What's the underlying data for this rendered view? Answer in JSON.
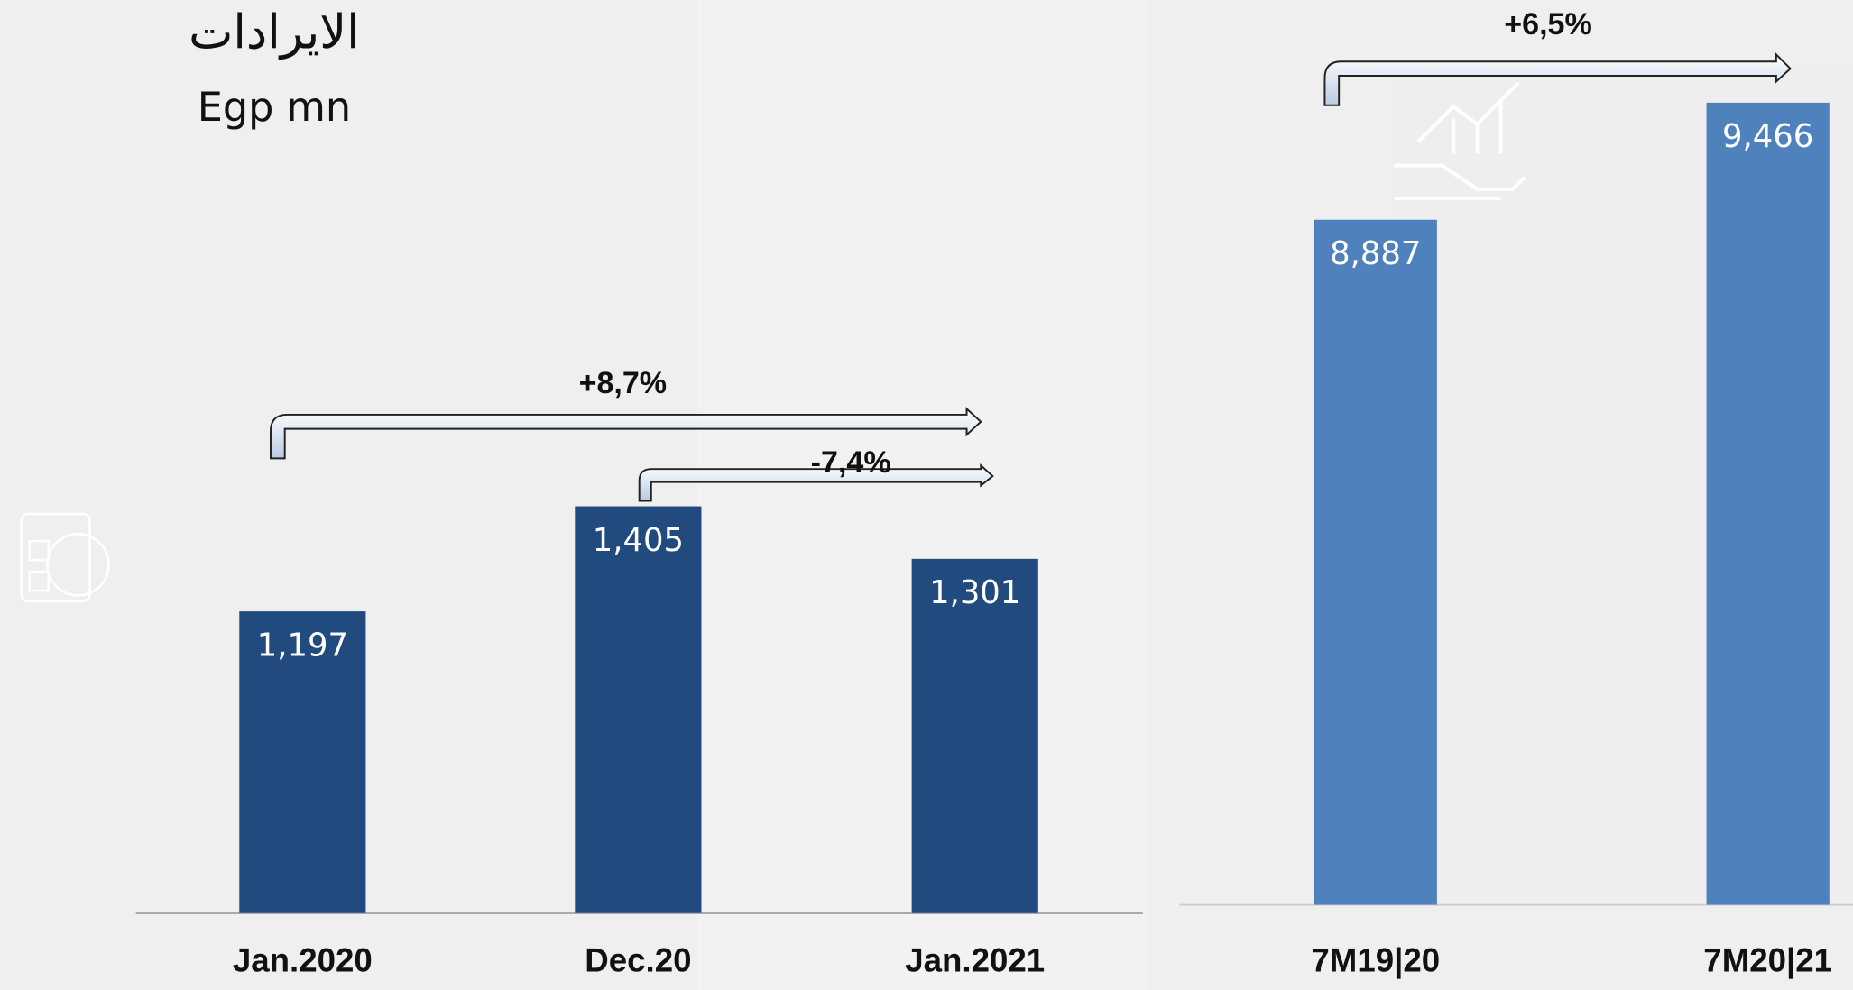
{
  "chart_data": [
    {
      "type": "bar",
      "title": "الايرادات",
      "subtitle": "Egp mn",
      "categories": [
        "Jan.2020",
        "Dec.20",
        "Jan.2021"
      ],
      "values": [
        1197,
        1405,
        1301
      ],
      "value_labels": [
        "1,197",
        "1,405",
        "1,301"
      ],
      "color": "#214a7e",
      "ylim": [
        600,
        2000
      ],
      "annotations": [
        "+8,7%",
        "-7,4%"
      ]
    },
    {
      "type": "bar",
      "categories": [
        "7M19|20",
        "7M20|21"
      ],
      "values": [
        8887,
        9466
      ],
      "value_labels": [
        "8,887",
        "9,466"
      ],
      "color": "#4f81bd",
      "ylim": [
        5500,
        9500
      ],
      "annotations": [
        "+6,5%"
      ]
    }
  ]
}
